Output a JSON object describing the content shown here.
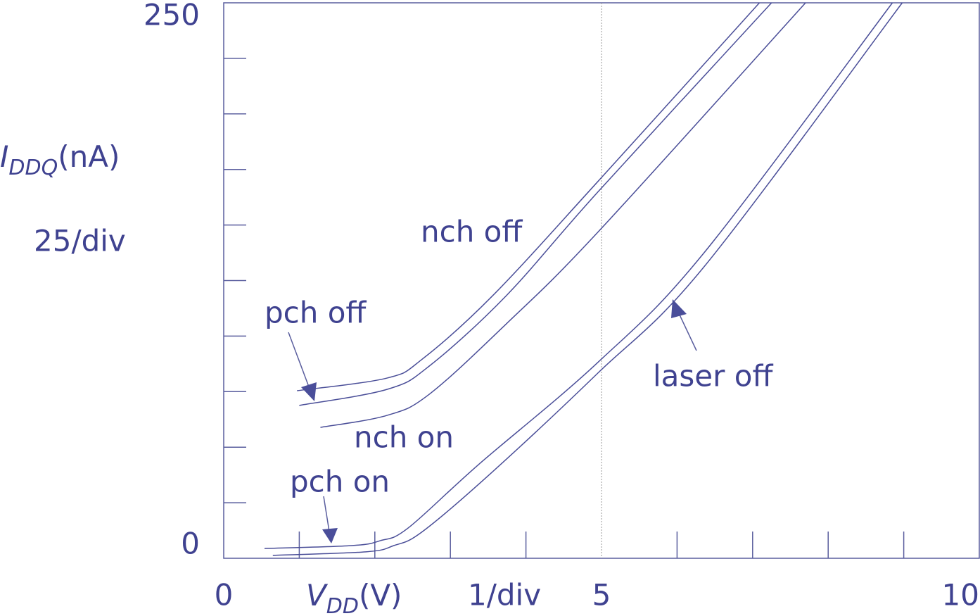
{
  "chart_data": {
    "type": "line",
    "ylabel": {
      "main": "I",
      "sub": "DDQ",
      "unit": "(nA)"
    },
    "ylabel_scale": "25/div",
    "xlabel": {
      "main": "V",
      "sub": "DD",
      "unit": "(V)"
    },
    "xlabel_scale": "1/div",
    "xlim": [
      0,
      10
    ],
    "ylim": [
      0,
      250
    ],
    "xticks": [
      0,
      5,
      10
    ],
    "yticks": [
      0,
      250
    ],
    "x_minor_ticks": [
      1,
      2,
      3,
      4,
      6,
      7,
      8,
      9
    ],
    "y_minor_ticks": [
      25,
      50,
      75,
      100,
      125,
      150,
      175,
      200,
      225
    ],
    "vgrid": [
      5
    ],
    "series": [
      {
        "name": "pch off",
        "color": "#4a4e98",
        "x": [
          0.97,
          2.16,
          2.63,
          3.56,
          4.95,
          7.09
        ],
        "values": [
          75.4,
          81.1,
          89.7,
          118.2,
          169.5,
          250
        ]
      },
      {
        "name": "nch off",
        "color": "#4a4e98",
        "x": [
          1.0,
          2.16,
          2.72,
          3.74,
          4.95,
          7.25
        ],
        "values": [
          68.8,
          76,
          86.5,
          118.2,
          164.8,
          250
        ]
      },
      {
        "name": "nch on",
        "color": "#4a4e98",
        "x": [
          1.28,
          2.16,
          2.72,
          3.74,
          4.95,
          7.7
        ],
        "values": [
          58.9,
          64.3,
          73.8,
          105.5,
          146.7,
          250
        ]
      },
      {
        "name": "pch on",
        "color": "#4a4e98",
        "x": [
          0.54,
          1.69,
          2.07,
          2.44,
          3.37,
          4.95,
          6.35,
          8.85
        ],
        "values": [
          4.4,
          5.7,
          7.9,
          13.6,
          42.1,
          88.1,
          137.2,
          250
        ]
      },
      {
        "name": "laser off",
        "color": "#4a4e98",
        "x": [
          0.65,
          1.88,
          2.25,
          2.63,
          3.56,
          4.95,
          6.35,
          8.98
        ],
        "values": [
          1.3,
          2.9,
          5.7,
          12,
          39,
          83.3,
          130.9,
          250
        ]
      }
    ]
  }
}
